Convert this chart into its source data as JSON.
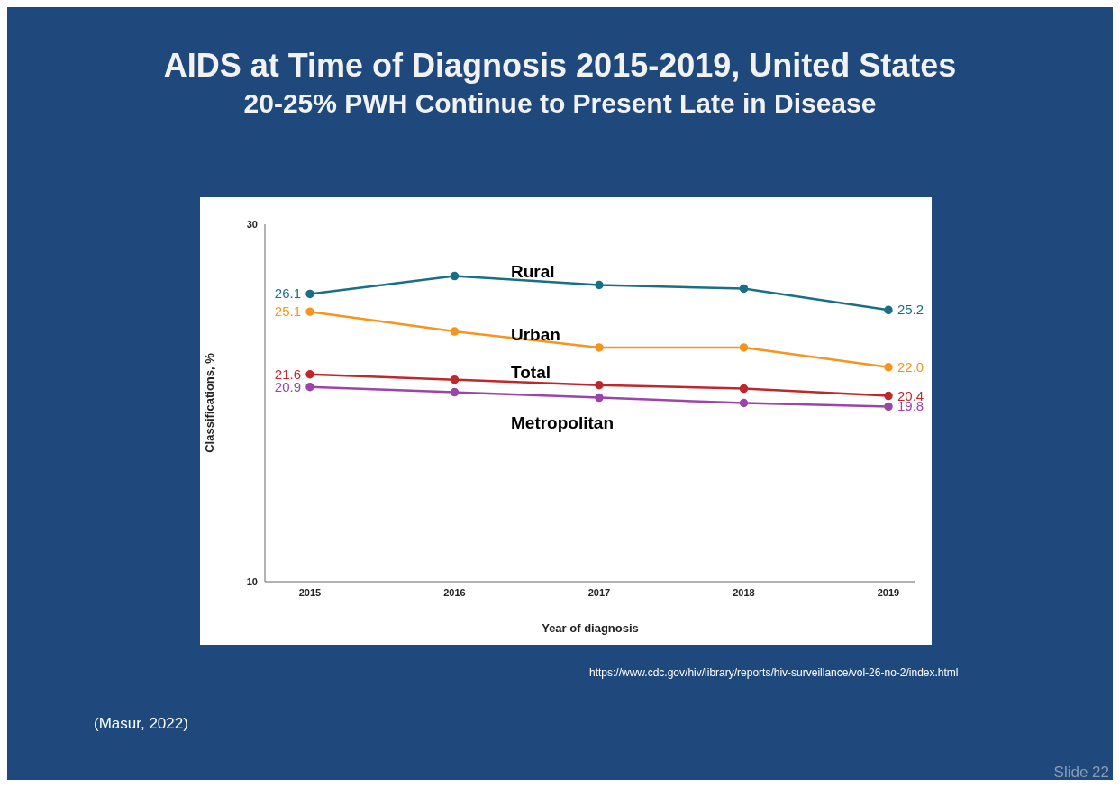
{
  "chart_data": {
    "type": "line",
    "title": "AIDS at Time of Diagnosis 2015-2019, United States",
    "subtitle": "20-25% PWH Continue to Present Late in Disease",
    "xlabel": "Year of diagnosis",
    "ylabel": "Classifications, %",
    "categories": [
      "2015",
      "2016",
      "2017",
      "2018",
      "2019"
    ],
    "series": [
      {
        "name": "Rural",
        "color": "#1a6e86",
        "values": [
          26.1,
          27.1,
          26.6,
          26.4,
          25.2
        ],
        "value_labels": [
          "26.1",
          null,
          null,
          null,
          "25.2"
        ]
      },
      {
        "name": "Urban",
        "color": "#f7941d",
        "values": [
          25.1,
          24.0,
          23.1,
          23.1,
          22.0
        ],
        "value_labels": [
          "25.1",
          null,
          null,
          null,
          "22.0"
        ]
      },
      {
        "name": "Total",
        "color": "#c0272d",
        "values": [
          21.6,
          21.3,
          21.0,
          20.8,
          20.4
        ],
        "value_labels": [
          "21.6",
          null,
          null,
          null,
          "20.4"
        ]
      },
      {
        "name": "Metropolitan",
        "color": "#9b45a8",
        "values": [
          20.9,
          20.6,
          20.3,
          20.0,
          19.8
        ],
        "value_labels": [
          "20.9",
          null,
          null,
          null,
          "19.8"
        ]
      }
    ],
    "ylim": [
      10,
      30
    ],
    "yticks": [
      10,
      30
    ],
    "grid": false,
    "legend": false,
    "marker": "circle",
    "line_style": "solid",
    "annotations": [
      "https://www.cdc.gov/hiv/library/reports/hiv-surveillance/vol-26-no-2/index.html",
      "(Masur, 2022)",
      "Slide 22"
    ]
  }
}
